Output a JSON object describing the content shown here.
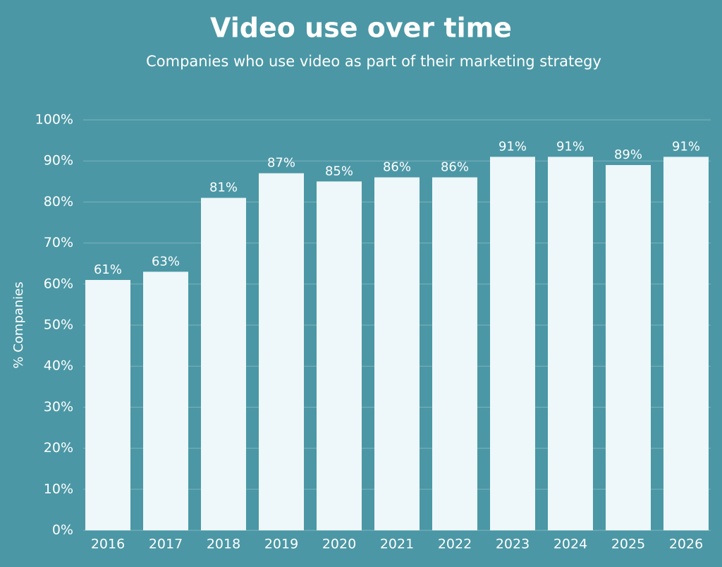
{
  "chart_data": {
    "type": "bar",
    "title": "Video use over time",
    "subtitle": "Companies who use video as part of their marketing strategy",
    "y_axis_label": "% Companies",
    "categories": [
      "2016",
      "2017",
      "2018",
      "2019",
      "2020",
      "2021",
      "2022",
      "2023",
      "2024",
      "2025",
      "2026"
    ],
    "values": [
      61,
      63,
      81,
      87,
      85,
      86,
      86,
      91,
      91,
      89,
      91
    ],
    "value_labels": [
      "61%",
      "63%",
      "81%",
      "87%",
      "85%",
      "86%",
      "86%",
      "91%",
      "91%",
      "89%",
      "91%"
    ],
    "color": "#eef7f9",
    "ylim": [
      0,
      100
    ],
    "yticks": [
      {
        "value": 0,
        "label": "0%"
      },
      {
        "value": 10,
        "label": "10%"
      },
      {
        "value": 20,
        "label": "20%"
      },
      {
        "value": 30,
        "label": "30%"
      },
      {
        "value": 40,
        "label": "40%"
      },
      {
        "value": 50,
        "label": "50%"
      },
      {
        "value": 60,
        "label": "60%"
      },
      {
        "value": 70,
        "label": "70%"
      },
      {
        "value": 80,
        "label": "80%"
      },
      {
        "value": 90,
        "label": "90%"
      },
      {
        "value": 100,
        "label": "100%"
      }
    ],
    "grid": true
  }
}
